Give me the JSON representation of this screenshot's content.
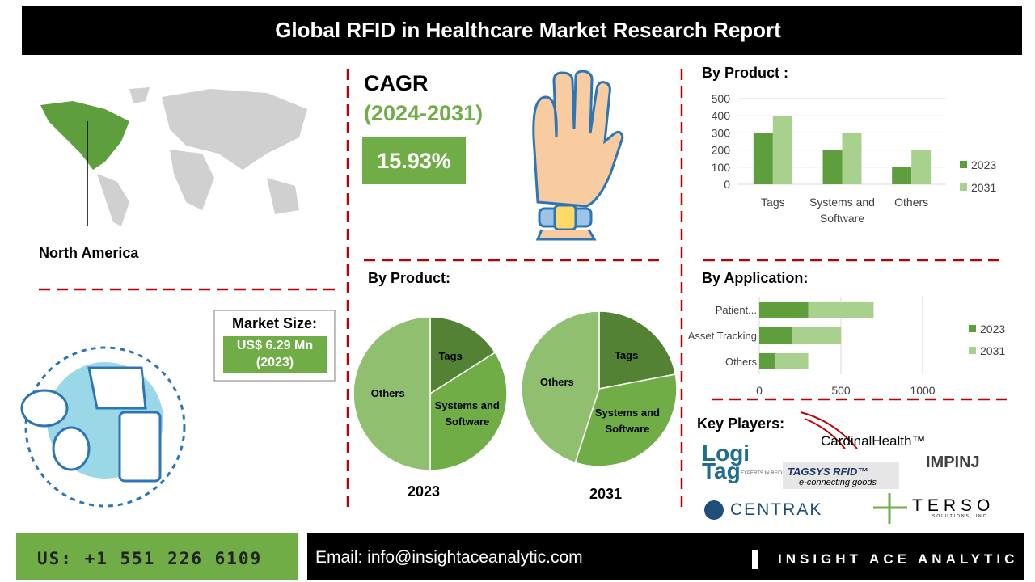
{
  "header": {
    "title": "Global RFID in Healthcare Market Research Report"
  },
  "region": "North America",
  "cagr": {
    "label": "CAGR",
    "period": "(2024-2031)",
    "value": "15.93%"
  },
  "market_size": {
    "label": "Market Size:",
    "value": "US$ 6.29 Mn",
    "year": "(2023)"
  },
  "key_players": {
    "title": "Key Players:",
    "logos": [
      "Logi",
      "Tag",
      "EXPERTS IN RFID",
      "CardinalHealth™",
      "TAGSYS RFID™",
      "e-connecting goods",
      "IMPINJ",
      "CENTRAK",
      "TERSO",
      "SOLUTIONS, INC."
    ]
  },
  "footer": {
    "phone": "US: +1 551 226 6109",
    "email": "Email: info@insightaceanalytic.com",
    "brand": "INSIGHT ACE ANALYTIC"
  },
  "chart_data": [
    {
      "type": "bar",
      "title": "By Product :",
      "categories": [
        "Tags",
        "Systems and Software",
        "Others"
      ],
      "series": [
        {
          "name": "2023",
          "color": "#5e9e3c",
          "values": [
            300,
            200,
            100
          ]
        },
        {
          "name": "2031",
          "color": "#a9d18e",
          "values": [
            400,
            300,
            200
          ]
        }
      ],
      "ylim": [
        0,
        500
      ],
      "yticks": [
        0,
        100,
        200,
        300,
        400,
        500
      ],
      "grid": true,
      "legend": "right"
    },
    {
      "type": "pie",
      "title": "By Product:",
      "caption": "2023",
      "categories": [
        "Tags",
        "Systems and Software",
        "Others"
      ],
      "values": [
        16,
        34,
        50
      ],
      "colors": [
        "#548235",
        "#70ad47",
        "#8fbf6f"
      ]
    },
    {
      "type": "pie",
      "caption": "2031",
      "categories": [
        "Tags",
        "Systems and Software",
        "Others"
      ],
      "values": [
        22,
        33,
        45
      ],
      "colors": [
        "#548235",
        "#70ad47",
        "#8fbf6f"
      ]
    },
    {
      "type": "hbar-stacked",
      "title": "By Application:",
      "categories": [
        "Patient...",
        "Asset Tracking",
        "Others"
      ],
      "series": [
        {
          "name": "2023",
          "color": "#5e9e3c",
          "values": [
            300,
            200,
            100
          ]
        },
        {
          "name": "2031",
          "color": "#a9d18e",
          "values": [
            400,
            300,
            200
          ]
        }
      ],
      "xlim": [
        0,
        1000
      ],
      "xticks": [
        0,
        500,
        1000
      ],
      "grid": true,
      "legend": "right"
    }
  ]
}
